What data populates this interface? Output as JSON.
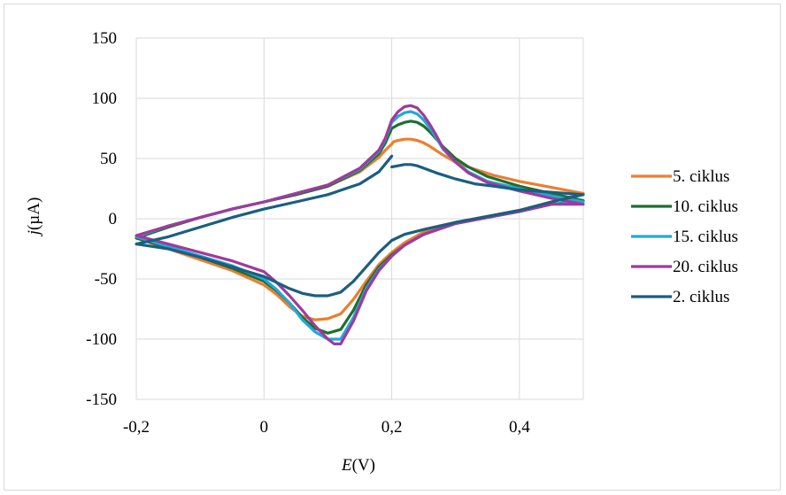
{
  "chart_data": {
    "type": "line",
    "title": "",
    "xlabel_italic": "E",
    "xlabel_rest": "(V)",
    "ylabel_italic": "j",
    "ylabel_rest": "(µA)",
    "xlim": [
      -0.2,
      0.5
    ],
    "ylim": [
      -150,
      150
    ],
    "xticks": [
      -0.2,
      0,
      0.2,
      0.4
    ],
    "xtick_labels": [
      "-0,2",
      "0",
      "0,2",
      "0,4"
    ],
    "yticks": [
      -150,
      -100,
      -50,
      0,
      50,
      100,
      150
    ],
    "ytick_labels": [
      "-150",
      "-100",
      "-50",
      "0",
      "50",
      "100",
      "150"
    ],
    "grid": true,
    "legend_position": "right",
    "series": [
      {
        "name": "5. ciklus",
        "color": "#ed7d31",
        "x": [
          0.2,
          0.203,
          0.21,
          0.22,
          0.23,
          0.24,
          0.25,
          0.26,
          0.28,
          0.3,
          0.33,
          0.36,
          0.4,
          0.45,
          0.5,
          0.45,
          0.4,
          0.35,
          0.3,
          0.25,
          0.22,
          0.2,
          0.18,
          0.16,
          0.14,
          0.12,
          0.1,
          0.08,
          0.06,
          0.04,
          0.02,
          0.0,
          -0.05,
          -0.1,
          -0.15,
          -0.2,
          -0.15,
          -0.1,
          -0.05,
          0.0,
          0.05,
          0.1,
          0.15,
          0.18,
          0.19,
          0.2
        ],
        "y": [
          62,
          64,
          65,
          66,
          66,
          65,
          63,
          60,
          53,
          47,
          41,
          36,
          31,
          26,
          21,
          14,
          7,
          2,
          -3,
          -11,
          -20,
          -28,
          -38,
          -52,
          -67,
          -79,
          -83,
          -84,
          -81,
          -73,
          -63,
          -55,
          -43,
          -34,
          -25,
          -16,
          -7,
          1,
          8,
          14,
          20,
          27,
          39,
          51,
          57,
          62
        ]
      },
      {
        "name": "10. ciklus",
        "color": "#1e6f2e",
        "x": [
          0.2,
          0.21,
          0.22,
          0.23,
          0.24,
          0.25,
          0.26,
          0.27,
          0.28,
          0.3,
          0.32,
          0.35,
          0.4,
          0.45,
          0.5,
          0.45,
          0.4,
          0.35,
          0.3,
          0.25,
          0.22,
          0.2,
          0.18,
          0.16,
          0.14,
          0.12,
          0.1,
          0.08,
          0.06,
          0.04,
          0.02,
          0.0,
          -0.05,
          -0.1,
          -0.15,
          -0.2,
          -0.15,
          -0.1,
          -0.05,
          0.0,
          0.05,
          0.1,
          0.15,
          0.18,
          0.19,
          0.2
        ],
        "y": [
          75,
          78,
          80,
          81,
          80,
          77,
          72,
          66,
          60,
          50,
          43,
          35,
          27,
          21,
          15,
          12,
          6,
          1,
          -4,
          -13,
          -22,
          -30,
          -40,
          -55,
          -76,
          -92,
          -95,
          -91,
          -82,
          -70,
          -60,
          -52,
          -41,
          -32,
          -24,
          -16,
          -7,
          1,
          8,
          14,
          20,
          27,
          40,
          54,
          63,
          75
        ]
      },
      {
        "name": "15. ciklus",
        "color": "#21a9dc",
        "x": [
          0.2,
          0.21,
          0.22,
          0.23,
          0.24,
          0.25,
          0.26,
          0.27,
          0.28,
          0.3,
          0.32,
          0.35,
          0.4,
          0.45,
          0.5,
          0.45,
          0.4,
          0.35,
          0.3,
          0.25,
          0.22,
          0.2,
          0.18,
          0.16,
          0.14,
          0.12,
          0.1,
          0.08,
          0.06,
          0.04,
          0.02,
          0.0,
          -0.05,
          -0.1,
          -0.15,
          -0.2,
          -0.15,
          -0.1,
          -0.05,
          0.0,
          0.05,
          0.1,
          0.15,
          0.18,
          0.19,
          0.2
        ],
        "y": [
          80,
          85,
          88,
          89,
          87,
          82,
          75,
          67,
          58,
          47,
          39,
          31,
          25,
          19,
          14,
          12,
          6,
          1,
          -4,
          -13,
          -22,
          -31,
          -42,
          -58,
          -82,
          -100,
          -100,
          -94,
          -84,
          -70,
          -59,
          -50,
          -39,
          -31,
          -23,
          -15,
          -6,
          1,
          8,
          14,
          21,
          28,
          41,
          56,
          66,
          80
        ]
      },
      {
        "name": "20. ciklus",
        "color": "#a03a9c",
        "x": [
          0.2,
          0.21,
          0.22,
          0.23,
          0.24,
          0.25,
          0.26,
          0.27,
          0.28,
          0.3,
          0.32,
          0.35,
          0.4,
          0.45,
          0.5,
          0.45,
          0.4,
          0.35,
          0.3,
          0.25,
          0.22,
          0.2,
          0.18,
          0.16,
          0.14,
          0.12,
          0.11,
          0.1,
          0.08,
          0.06,
          0.04,
          0.02,
          0.0,
          -0.05,
          -0.1,
          -0.15,
          -0.2,
          -0.15,
          -0.1,
          -0.05,
          0.0,
          0.05,
          0.1,
          0.15,
          0.18,
          0.19,
          0.2
        ],
        "y": [
          82,
          89,
          93,
          94,
          92,
          86,
          78,
          69,
          59,
          47,
          38,
          30,
          23,
          17,
          12,
          12,
          6,
          1,
          -4,
          -13,
          -22,
          -31,
          -43,
          -60,
          -85,
          -104,
          -104,
          -100,
          -89,
          -76,
          -64,
          -53,
          -44,
          -35,
          -28,
          -21,
          -14,
          -6,
          1,
          8,
          14,
          21,
          28,
          42,
          57,
          67,
          82
        ]
      },
      {
        "name": "2. ciklus",
        "color": "#1b5e80",
        "x": [
          0.2,
          0.18,
          0.16,
          0.14,
          0.12,
          0.1,
          0.08,
          0.06,
          0.04,
          0.02,
          0.0,
          -0.05,
          -0.1,
          -0.15,
          -0.2,
          -0.15,
          -0.1,
          -0.05,
          0.0,
          0.05,
          0.1,
          0.15,
          0.18,
          0.2,
          null,
          0.2,
          0.21,
          0.22,
          0.23,
          0.24,
          0.25,
          0.27,
          0.3,
          0.33,
          0.36,
          0.4,
          0.45,
          0.5,
          0.45,
          0.4,
          0.35,
          0.3,
          0.25,
          0.22,
          0.2
        ],
        "y": [
          -18,
          -28,
          -40,
          -52,
          -61,
          -64,
          -64,
          -62,
          -58,
          -53,
          -48,
          -40,
          -32,
          -25,
          -21,
          -15,
          -7,
          1,
          8,
          14,
          20,
          29,
          39,
          52,
          null,
          43,
          44,
          45,
          45,
          44,
          42,
          38,
          33,
          29,
          27,
          24,
          22,
          20,
          14,
          7,
          2,
          -3,
          -9,
          -13,
          -18
        ]
      }
    ]
  }
}
